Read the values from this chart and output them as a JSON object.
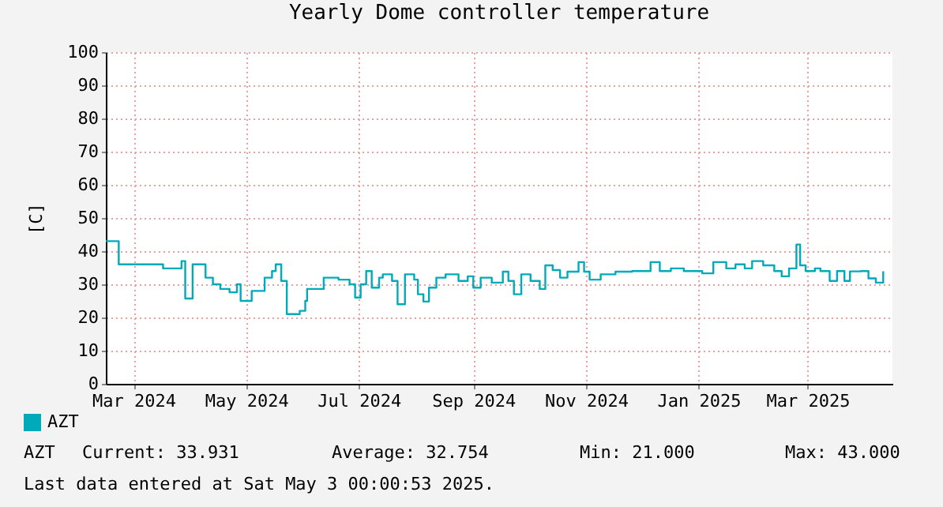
{
  "chart_data": {
    "type": "step",
    "title": "Yearly Dome controller temperature",
    "ylabel": "[C]",
    "x": [
      "2024-02-15",
      "2024-02-22",
      "2024-03-17",
      "2024-03-27",
      "2024-03-29",
      "2024-04-02",
      "2024-04-09",
      "2024-04-13",
      "2024-04-17",
      "2024-04-22",
      "2024-04-26",
      "2024-04-28",
      "2024-05-04",
      "2024-05-11",
      "2024-05-15",
      "2024-05-17",
      "2024-05-20",
      "2024-05-23",
      "2024-05-30",
      "2024-06-02",
      "2024-06-03",
      "2024-06-12",
      "2024-06-20",
      "2024-06-26",
      "2024-06-29",
      "2024-07-02",
      "2024-07-05",
      "2024-07-08",
      "2024-07-12",
      "2024-07-14",
      "2024-07-19",
      "2024-07-22",
      "2024-07-26",
      "2024-07-31",
      "2024-08-02",
      "2024-08-05",
      "2024-08-08",
      "2024-08-12",
      "2024-08-17",
      "2024-08-24",
      "2024-08-29",
      "2024-09-01",
      "2024-09-05",
      "2024-09-11",
      "2024-09-17",
      "2024-09-20",
      "2024-09-23",
      "2024-09-27",
      "2024-10-02",
      "2024-10-07",
      "2024-10-10",
      "2024-10-14",
      "2024-10-18",
      "2024-10-22",
      "2024-10-28",
      "2024-10-31",
      "2024-11-03",
      "2024-11-09",
      "2024-11-17",
      "2024-11-26",
      "2024-12-04",
      "2024-12-06",
      "2024-12-11",
      "2024-12-17",
      "2024-12-24",
      "2024-12-30",
      "2025-01-03",
      "2025-01-09",
      "2025-01-16",
      "2025-01-21",
      "2025-01-26",
      "2025-01-30",
      "2025-02-05",
      "2025-02-11",
      "2025-02-15",
      "2025-02-19",
      "2025-02-23",
      "2025-02-25",
      "2025-02-28",
      "2025-03-05",
      "2025-03-08",
      "2025-03-13",
      "2025-03-17",
      "2025-03-21",
      "2025-03-24",
      "2025-03-30",
      "2025-04-03",
      "2025-04-07",
      "2025-04-11"
    ],
    "series": [
      {
        "name": "AZT",
        "color": "#00aab8",
        "values": [
          43,
          36,
          34.8,
          37,
          25.7,
          36,
          32,
          30,
          28.6,
          27.6,
          30,
          25,
          28,
          32,
          34,
          36,
          31,
          21,
          22,
          25,
          28.6,
          32,
          31.4,
          30,
          26,
          30,
          34,
          29,
          32,
          33,
          31,
          24,
          33,
          31.4,
          27,
          24.8,
          29,
          32,
          33,
          31,
          32.4,
          29,
          32,
          30.5,
          33.8,
          31,
          27,
          33,
          31,
          28.6,
          35.7,
          34.3,
          32,
          33.8,
          36.7,
          33.8,
          31.4,
          33,
          33.8,
          34,
          34,
          36.7,
          34,
          34.8,
          34,
          34,
          33.3,
          36.7,
          34.8,
          36,
          34.8,
          37,
          35.7,
          34,
          32.4,
          34.8,
          42,
          35.7,
          34,
          34.8,
          34,
          31,
          34,
          31,
          33.9,
          34,
          31.8,
          30.5,
          33.9
        ]
      }
    ],
    "xlim": [
      "2024-02-15",
      "2025-04-16"
    ],
    "xticks": [
      {
        "value": "2024-03-01",
        "label": "Mar 2024"
      },
      {
        "value": "2024-05-01",
        "label": "May 2024"
      },
      {
        "value": "2024-07-01",
        "label": "Jul 2024"
      },
      {
        "value": "2024-09-01",
        "label": "Sep 2024"
      },
      {
        "value": "2024-11-01",
        "label": "Nov 2024"
      },
      {
        "value": "2025-01-01",
        "label": "Jan 2025"
      },
      {
        "value": "2025-03-01",
        "label": "Mar 2025"
      }
    ],
    "ylim": [
      0,
      100
    ],
    "yticks": [
      0,
      10,
      20,
      30,
      40,
      50,
      60,
      70,
      80,
      90,
      100
    ],
    "grid": true,
    "legend": "bottom",
    "annotations": [
      "AZT",
      "Current:    33.931",
      "Average:    32.754",
      "Min:    21.000",
      "Max:    43.000",
      "Last data entered at Sat May  3 00:00:53 2025."
    ]
  }
}
